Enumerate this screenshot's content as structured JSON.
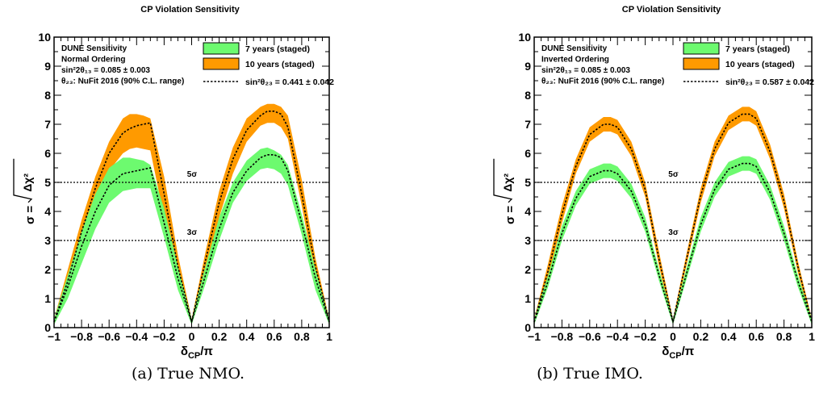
{
  "colors": {
    "band_7yr": "#6dfa6f",
    "band_10yr": "#ff9a00",
    "curve": "#000000",
    "frame": "#000000"
  },
  "chart_data": [
    {
      "type": "area",
      "title": "CP Violation Sensitivity",
      "xlabel_main": "δ",
      "xlabel_sub": "CP",
      "xlabel_tail": "/π",
      "ylabel_prefix": "σ =",
      "ylabel_radicand": "Δχ²",
      "xlim": [
        -1,
        1
      ],
      "ylim": [
        0,
        10
      ],
      "x_ticks": [
        "−1",
        "−0.8",
        "−0.6",
        "−0.4",
        "−0.2",
        "0",
        "0.2",
        "0.4",
        "0.6",
        "0.8",
        "1"
      ],
      "y_ticks": [
        "0",
        "1",
        "2",
        "3",
        "4",
        "5",
        "6",
        "7",
        "8",
        "9",
        "10"
      ],
      "info_text": [
        "DUNE Sensitivity",
        "Normal Ordering",
        "sin²2θ₁₃ = 0.085 ± 0.003",
        "θ₂₃: NuFit 2016 (90% C.L. range)"
      ],
      "reference_lines": [
        {
          "y": 5,
          "label": "5σ"
        },
        {
          "y": 3,
          "label": "3σ"
        }
      ],
      "legend_position": "top-right",
      "series": [
        {
          "name": "10 years (staged)",
          "kind": "band",
          "x": [
            -1,
            -0.9,
            -0.8,
            -0.7,
            -0.6,
            -0.5,
            -0.45,
            -0.4,
            -0.35,
            -0.3,
            -0.2,
            -0.1,
            0,
            0.1,
            0.2,
            0.3,
            0.4,
            0.5,
            0.55,
            0.6,
            0.65,
            0.7,
            0.8,
            0.9,
            1
          ],
          "upper": [
            0.3,
            2.0,
            3.7,
            5.2,
            6.4,
            7.2,
            7.35,
            7.35,
            7.3,
            7.2,
            5.2,
            2.5,
            0.3,
            2.6,
            4.7,
            6.2,
            7.2,
            7.6,
            7.7,
            7.7,
            7.6,
            7.3,
            5.1,
            2.4,
            0.3
          ],
          "lower": [
            0.1,
            1.2,
            2.8,
            4.3,
            5.4,
            6.0,
            6.15,
            6.2,
            6.15,
            6.1,
            3.8,
            1.6,
            0.15,
            1.9,
            3.8,
            5.3,
            6.4,
            6.95,
            7.05,
            7.05,
            6.9,
            6.5,
            4.2,
            1.7,
            0.1
          ]
        },
        {
          "name": "7 years (staged)",
          "kind": "band",
          "x": [
            -1,
            -0.9,
            -0.8,
            -0.7,
            -0.6,
            -0.5,
            -0.45,
            -0.4,
            -0.35,
            -0.3,
            -0.2,
            -0.1,
            0,
            0.1,
            0.2,
            0.3,
            0.4,
            0.5,
            0.55,
            0.6,
            0.65,
            0.7,
            0.8,
            0.9,
            1
          ],
          "upper": [
            0.3,
            1.8,
            3.3,
            4.6,
            5.5,
            5.85,
            5.85,
            5.8,
            5.75,
            5.6,
            4.1,
            2.1,
            0.3,
            2.1,
            3.8,
            5.0,
            5.75,
            6.15,
            6.2,
            6.1,
            5.95,
            5.6,
            3.9,
            2.0,
            0.3
          ],
          "lower": [
            0.1,
            1.0,
            2.2,
            3.4,
            4.3,
            4.7,
            4.75,
            4.8,
            4.8,
            4.8,
            3.1,
            1.3,
            0.1,
            1.5,
            3.0,
            4.3,
            5.05,
            5.45,
            5.5,
            5.45,
            5.3,
            4.9,
            3.2,
            1.3,
            0.1
          ]
        },
        {
          "name": "sin²θ₂₃ = 0.441 ± 0.042",
          "kind": "curve_10yr",
          "x": [
            -1,
            -0.9,
            -0.8,
            -0.7,
            -0.6,
            -0.5,
            -0.45,
            -0.4,
            -0.35,
            -0.3,
            -0.2,
            -0.1,
            0,
            0.1,
            0.2,
            0.3,
            0.4,
            0.5,
            0.55,
            0.6,
            0.65,
            0.7,
            0.8,
            0.9,
            1
          ],
          "y": [
            0.2,
            1.6,
            3.3,
            4.8,
            6.0,
            6.7,
            6.85,
            6.95,
            7.0,
            7.05,
            4.6,
            2.1,
            0.2,
            2.3,
            4.3,
            5.8,
            6.8,
            7.3,
            7.45,
            7.45,
            7.35,
            6.9,
            4.6,
            2.1,
            0.2
          ]
        },
        {
          "name": "",
          "kind": "curve_7yr",
          "x": [
            -1,
            -0.9,
            -0.8,
            -0.7,
            -0.6,
            -0.5,
            -0.45,
            -0.4,
            -0.35,
            -0.3,
            -0.2,
            -0.1,
            0,
            0.1,
            0.2,
            0.3,
            0.4,
            0.5,
            0.55,
            0.6,
            0.65,
            0.7,
            0.8,
            0.9,
            1
          ],
          "y": [
            0.2,
            1.4,
            2.8,
            4.0,
            4.9,
            5.3,
            5.35,
            5.4,
            5.45,
            5.5,
            3.6,
            1.7,
            0.2,
            1.8,
            3.4,
            4.65,
            5.4,
            5.85,
            5.95,
            5.95,
            5.85,
            5.4,
            3.6,
            1.7,
            0.2
          ]
        }
      ],
      "caption": "(a) True NMO."
    },
    {
      "type": "area",
      "title": "CP Violation Sensitivity",
      "xlabel_main": "δ",
      "xlabel_sub": "CP",
      "xlabel_tail": "/π",
      "ylabel_prefix": "σ =",
      "ylabel_radicand": "Δχ²",
      "xlim": [
        -1,
        1
      ],
      "ylim": [
        0,
        10
      ],
      "x_ticks": [
        "−1",
        "−0.8",
        "−0.6",
        "−0.4",
        "−0.2",
        "0",
        "0.2",
        "0.4",
        "0.6",
        "0.8",
        "1"
      ],
      "y_ticks": [
        "0",
        "1",
        "2",
        "3",
        "4",
        "5",
        "6",
        "7",
        "8",
        "9",
        "10"
      ],
      "info_text": [
        "DUNE Sensitivity",
        "Inverted Ordering",
        "sin²2θ₁₃ = 0.085 ± 0.003",
        "θ₂₃: NuFit 2016 (90% C.L. range)"
      ],
      "reference_lines": [
        {
          "y": 5,
          "label": "5σ"
        },
        {
          "y": 3,
          "label": "3σ"
        }
      ],
      "legend_position": "top-right",
      "series": [
        {
          "name": "10 years (staged)",
          "kind": "band",
          "x": [
            -1,
            -0.9,
            -0.8,
            -0.7,
            -0.6,
            -0.5,
            -0.45,
            -0.4,
            -0.3,
            -0.2,
            -0.1,
            0,
            0.1,
            0.2,
            0.3,
            0.4,
            0.5,
            0.55,
            0.6,
            0.7,
            0.8,
            0.9,
            1
          ],
          "upper": [
            0.3,
            2.2,
            4.2,
            5.8,
            6.9,
            7.25,
            7.25,
            7.15,
            6.4,
            5.0,
            2.6,
            0.3,
            2.6,
            4.8,
            6.4,
            7.3,
            7.6,
            7.6,
            7.45,
            6.3,
            4.6,
            2.3,
            0.3
          ],
          "lower": [
            0.1,
            1.7,
            3.6,
            5.3,
            6.4,
            6.75,
            6.75,
            6.65,
            5.9,
            4.5,
            2.1,
            0.1,
            2.2,
            4.3,
            5.9,
            6.8,
            7.1,
            7.1,
            6.95,
            5.8,
            4.1,
            1.9,
            0.1
          ]
        },
        {
          "name": "7 years (staged)",
          "kind": "band",
          "x": [
            -1,
            -0.9,
            -0.8,
            -0.7,
            -0.6,
            -0.5,
            -0.45,
            -0.4,
            -0.3,
            -0.2,
            -0.1,
            0,
            0.1,
            0.2,
            0.3,
            0.4,
            0.5,
            0.55,
            0.6,
            0.7,
            0.8,
            0.9,
            1
          ],
          "upper": [
            0.3,
            1.8,
            3.5,
            4.7,
            5.45,
            5.65,
            5.65,
            5.55,
            4.95,
            3.8,
            2.0,
            0.3,
            2.1,
            3.8,
            5.0,
            5.7,
            5.9,
            5.9,
            5.8,
            4.9,
            3.5,
            1.8,
            0.3
          ],
          "lower": [
            0.1,
            1.4,
            3.0,
            4.2,
            4.95,
            5.15,
            5.15,
            5.05,
            4.45,
            3.3,
            1.6,
            0.1,
            1.7,
            3.3,
            4.5,
            5.2,
            5.4,
            5.4,
            5.3,
            4.4,
            3.0,
            1.4,
            0.1
          ]
        },
        {
          "name": "sin²θ₂₃ = 0.587 ± 0.042",
          "kind": "curve_10yr",
          "x": [
            -1,
            -0.9,
            -0.8,
            -0.7,
            -0.6,
            -0.5,
            -0.45,
            -0.4,
            -0.3,
            -0.2,
            -0.1,
            0,
            0.1,
            0.2,
            0.3,
            0.4,
            0.5,
            0.55,
            0.6,
            0.7,
            0.8,
            0.9,
            1
          ],
          "y": [
            0.2,
            1.95,
            3.9,
            5.55,
            6.65,
            7.0,
            7.0,
            6.9,
            6.15,
            4.75,
            2.35,
            0.2,
            2.4,
            4.55,
            6.15,
            7.05,
            7.35,
            7.35,
            7.2,
            6.05,
            4.35,
            2.1,
            0.2
          ]
        },
        {
          "name": "",
          "kind": "curve_7yr",
          "x": [
            -1,
            -0.9,
            -0.8,
            -0.7,
            -0.6,
            -0.5,
            -0.45,
            -0.4,
            -0.3,
            -0.2,
            -0.1,
            0,
            0.1,
            0.2,
            0.3,
            0.4,
            0.5,
            0.55,
            0.6,
            0.7,
            0.8,
            0.9,
            1
          ],
          "y": [
            0.2,
            1.6,
            3.25,
            4.45,
            5.2,
            5.4,
            5.4,
            5.3,
            4.7,
            3.55,
            1.8,
            0.2,
            1.9,
            3.55,
            4.75,
            5.45,
            5.65,
            5.65,
            5.55,
            4.65,
            3.25,
            1.6,
            0.2
          ]
        }
      ],
      "caption": "(b) True IMO."
    }
  ]
}
